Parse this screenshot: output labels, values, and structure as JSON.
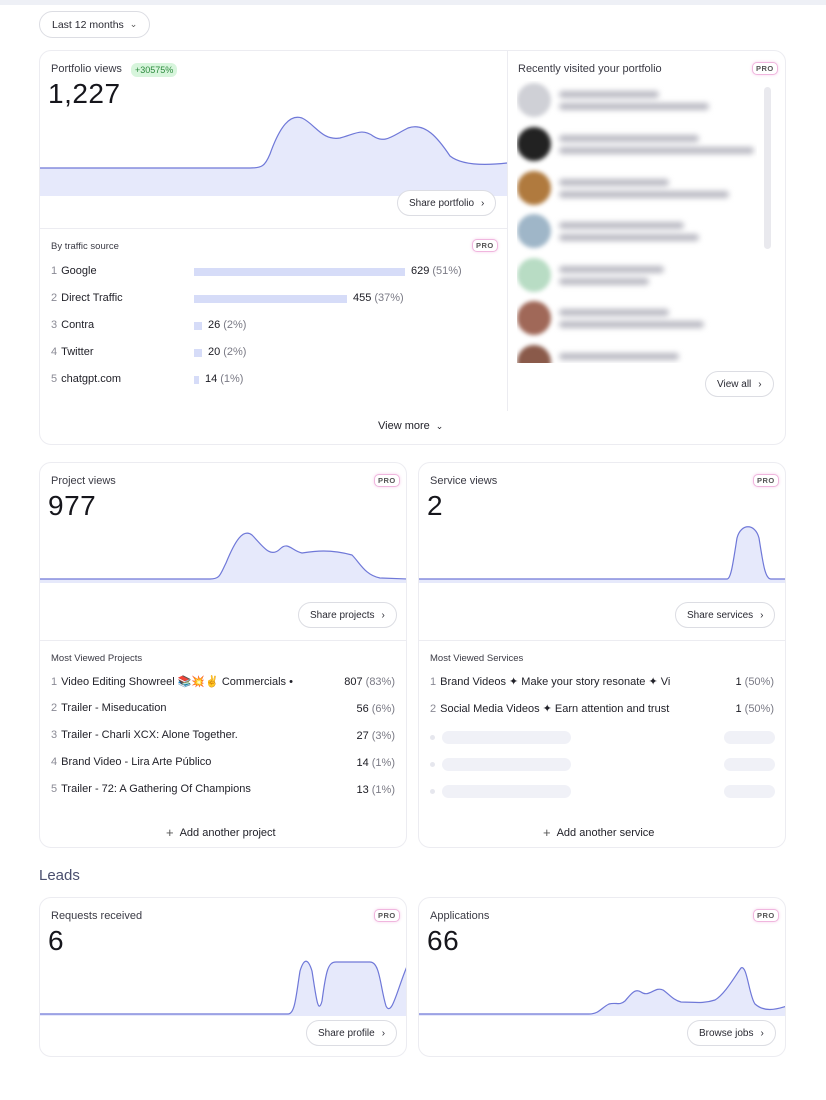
{
  "date_range": "Last 12 months",
  "portfolio": {
    "title": "Portfolio views",
    "growth": "+30575%",
    "count": "1,227",
    "share_label": "Share portfolio",
    "traffic_title": "By traffic source",
    "pro": "PRO",
    "sources": [
      {
        "rank": "1",
        "name": "Google",
        "value": "629",
        "pct": "(51%)",
        "share": 0.51
      },
      {
        "rank": "2",
        "name": "Direct Traffic",
        "value": "455",
        "pct": "(37%)",
        "share": 0.37
      },
      {
        "rank": "3",
        "name": "Contra",
        "value": "26",
        "pct": "(2%)",
        "share": 0.02
      },
      {
        "rank": "4",
        "name": "Twitter",
        "value": "20",
        "pct": "(2%)",
        "share": 0.02
      },
      {
        "rank": "5",
        "name": "chatgpt.com",
        "value": "14",
        "pct": "(1%)",
        "share": 0.01
      }
    ],
    "view_more": "View more"
  },
  "recent": {
    "title": "Recently visited your portfolio",
    "pro": "PRO",
    "view_all": "View all"
  },
  "projects": {
    "title": "Project views",
    "pro": "PRO",
    "count": "977",
    "share_label": "Share projects",
    "list_title": "Most Viewed Projects",
    "items": [
      {
        "rank": "1",
        "name": "Video Editing Showreel 📚💥✌️ Commercials •",
        "value": "807",
        "pct": "(83%)"
      },
      {
        "rank": "2",
        "name": "Trailer - Miseducation",
        "value": "56",
        "pct": "(6%)"
      },
      {
        "rank": "3",
        "name": "Trailer - Charli XCX: Alone Together.",
        "value": "27",
        "pct": "(3%)"
      },
      {
        "rank": "4",
        "name": "Brand Video - Lira Arte Público",
        "value": "14",
        "pct": "(1%)"
      },
      {
        "rank": "5",
        "name": "Trailer - 72: A Gathering Of Champions",
        "value": "13",
        "pct": "(1%)"
      }
    ],
    "add_label": "Add another project"
  },
  "services": {
    "title": "Service views",
    "pro": "PRO",
    "count": "2",
    "share_label": "Share services",
    "list_title": "Most Viewed Services",
    "items": [
      {
        "rank": "1",
        "name": "Brand Videos ✦ Make your story resonate ✦ Vi",
        "value": "1",
        "pct": "(50%)"
      },
      {
        "rank": "2",
        "name": "Social Media Videos ✦ Earn attention and trust",
        "value": "1",
        "pct": "(50%)"
      }
    ],
    "add_label": "Add another service"
  },
  "leads": {
    "heading": "Leads",
    "requests": {
      "title": "Requests received",
      "pro": "PRO",
      "count": "6",
      "share_label": "Share profile"
    },
    "applications": {
      "title": "Applications",
      "pro": "PRO",
      "count": "66",
      "action_label": "Browse jobs"
    }
  },
  "colors": {
    "line": "#6f78d8",
    "fill": "#e6e9fb",
    "bar": "#d6dcf8"
  }
}
